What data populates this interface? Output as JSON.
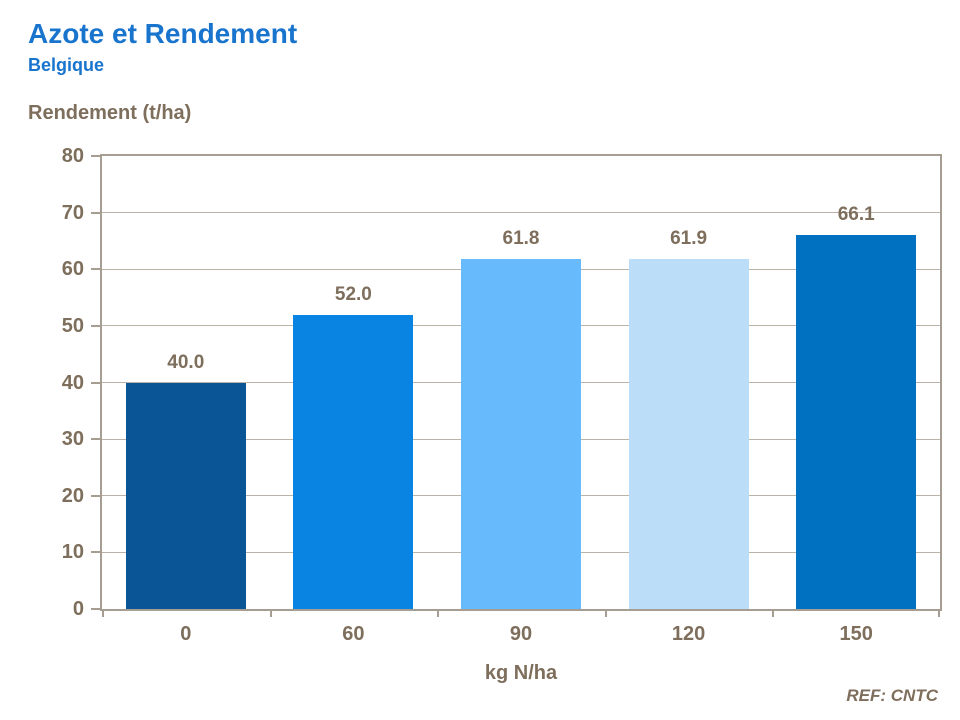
{
  "header": {
    "title": "Azote et Rendement",
    "subtitle": "Belgique"
  },
  "chart_data": {
    "type": "bar",
    "title": "Azote et Rendement",
    "subtitle": "Belgique",
    "categories": [
      "0",
      "60",
      "90",
      "120",
      "150"
    ],
    "values": [
      40.0,
      52.0,
      61.8,
      61.9,
      66.1
    ],
    "value_labels": [
      "40.0",
      "52.0",
      "61.8",
      "61.9",
      "66.1"
    ],
    "bar_colors": [
      "#0A5596",
      "#0984E3",
      "#67BBFC",
      "#BBDDF8",
      "#0071C1"
    ],
    "xlabel": "kg N/ha",
    "ylabel": "Rendement (t/ha)",
    "ylim": [
      0,
      80
    ],
    "yticks": [
      0,
      10,
      20,
      30,
      40,
      50,
      60,
      70,
      80
    ],
    "grid": "horizontal",
    "legend": "none"
  },
  "footer": {
    "ref": "REF: CNTC"
  },
  "colors": {
    "title_blue": "#1874CD",
    "axis_text": "#7E6E5C",
    "gridline": "#BBB2A8",
    "axis_border": "#A69D93"
  }
}
